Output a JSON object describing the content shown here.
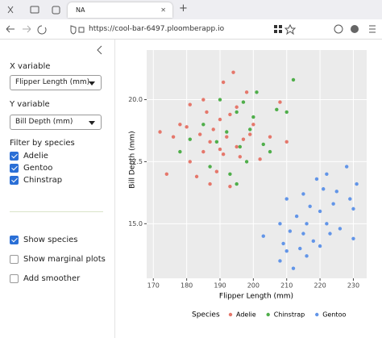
{
  "browser": {
    "tab_title": "NA",
    "url": "https://cool-bar-6497.ploomberapp.io"
  },
  "sidebar": {
    "x_label": "X variable",
    "x_select": "Flipper Length (mm)",
    "y_label": "Y variable",
    "y_select": "Bill Depth (mm)",
    "filter_label": "Filter by species",
    "species_filter": [
      {
        "label": "Adelie",
        "checked": true
      },
      {
        "label": "Gentoo",
        "checked": true
      },
      {
        "label": "Chinstrap",
        "checked": true
      }
    ],
    "options": [
      {
        "label": "Show species",
        "checked": true
      },
      {
        "label": "Show marginal plots",
        "checked": false
      },
      {
        "label": "Add smoother",
        "checked": false
      }
    ]
  },
  "chart_data": {
    "type": "scatter",
    "xlabel": "Flipper Length (mm)",
    "ylabel": "Bill Depth (mm)",
    "legend_title": "Species",
    "xlim": [
      168,
      234
    ],
    "ylim": [
      12.8,
      22.0
    ],
    "xticks": [
      170,
      180,
      190,
      200,
      210,
      220,
      230
    ],
    "yticks": [
      {
        "value": 15,
        "label": "15.0"
      },
      {
        "value": 17.5,
        "label": "17.5"
      },
      {
        "value": 20,
        "label": "20.0"
      }
    ],
    "grid": true,
    "series": [
      {
        "name": "Adelie",
        "color": "#e5776b",
        "x": [
          172,
          174,
          176,
          178,
          180,
          181,
          181,
          183,
          184,
          185,
          185,
          186,
          187,
          187,
          188,
          189,
          190,
          190,
          191,
          191,
          192,
          193,
          193,
          194,
          195,
          195,
          196,
          197,
          198,
          199,
          200,
          202,
          205,
          208,
          210
        ],
        "values": [
          18.7,
          17.0,
          18.5,
          19.0,
          18.9,
          17.5,
          19.8,
          16.9,
          18.6,
          17.9,
          20.0,
          19.5,
          18.3,
          16.6,
          18.8,
          17.1,
          19.2,
          18.0,
          20.7,
          17.8,
          18.5,
          19.4,
          16.5,
          21.1,
          18.1,
          19.7,
          17.7,
          18.4,
          20.3,
          18.6,
          19.0,
          17.6,
          18.5,
          19.9,
          18.3
        ]
      },
      {
        "name": "Chinstrap",
        "color": "#4fae4a",
        "x": [
          178,
          181,
          185,
          187,
          189,
          190,
          192,
          193,
          195,
          195,
          196,
          197,
          198,
          199,
          200,
          201,
          203,
          205,
          207,
          210,
          212
        ],
        "values": [
          17.9,
          18.4,
          19.0,
          17.3,
          18.3,
          20.0,
          18.7,
          17.0,
          19.5,
          16.6,
          18.1,
          19.9,
          17.5,
          18.8,
          19.3,
          20.3,
          18.2,
          17.9,
          19.6,
          19.5,
          20.8
        ]
      },
      {
        "name": "Gentoo",
        "color": "#6295e8",
        "x": [
          203,
          208,
          208,
          209,
          210,
          210,
          211,
          212,
          213,
          214,
          215,
          215,
          216,
          216,
          217,
          218,
          219,
          220,
          220,
          221,
          222,
          222,
          223,
          224,
          225,
          226,
          228,
          229,
          230,
          230,
          231
        ],
        "values": [
          14.5,
          13.5,
          15.0,
          14.2,
          16.0,
          13.9,
          14.7,
          13.2,
          15.3,
          14.0,
          16.2,
          14.6,
          15.0,
          13.7,
          15.7,
          14.3,
          16.8,
          15.5,
          14.1,
          16.4,
          15.0,
          17.0,
          14.6,
          15.8,
          16.3,
          14.8,
          17.3,
          16.0,
          15.6,
          14.4,
          16.6
        ]
      }
    ]
  }
}
